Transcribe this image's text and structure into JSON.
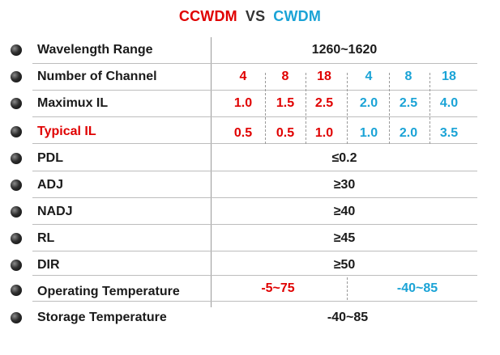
{
  "title": {
    "left": "CCWDM",
    "vs": "VS",
    "right": "CWDM"
  },
  "colors": {
    "ccwdm": "#e00000",
    "cwdm": "#1aa3d6",
    "text": "#1a1a1a"
  },
  "rows": {
    "wavelength": {
      "label": "Wavelength Range",
      "value": "1260~1620"
    },
    "channels": {
      "label": "Number of Channel",
      "values": [
        "4",
        "8",
        "18",
        "4",
        "8",
        "18"
      ]
    },
    "max_il": {
      "label": "Maximux IL",
      "values": [
        "1.0",
        "1.5",
        "2.5",
        "2.0",
        "2.5",
        "4.0"
      ]
    },
    "typ_il": {
      "label": "Typical IL",
      "values": [
        "0.5",
        "0.5",
        "1.0",
        "1.0",
        "2.0",
        "3.5"
      ]
    },
    "pdl": {
      "label": "PDL",
      "value": "≤0.2"
    },
    "adj": {
      "label": "ADJ",
      "value": "≥30"
    },
    "nadj": {
      "label": "NADJ",
      "value": "≥40"
    },
    "rl": {
      "label": "RL",
      "value": "≥45"
    },
    "dir": {
      "label": "DIR",
      "value": "≥50"
    },
    "op_temp": {
      "label": "Operating Temperature",
      "ccwdm": "-5~75",
      "cwdm": "-40~85"
    },
    "st_temp": {
      "label": "Storage Temperature",
      "value": "-40~85"
    }
  }
}
